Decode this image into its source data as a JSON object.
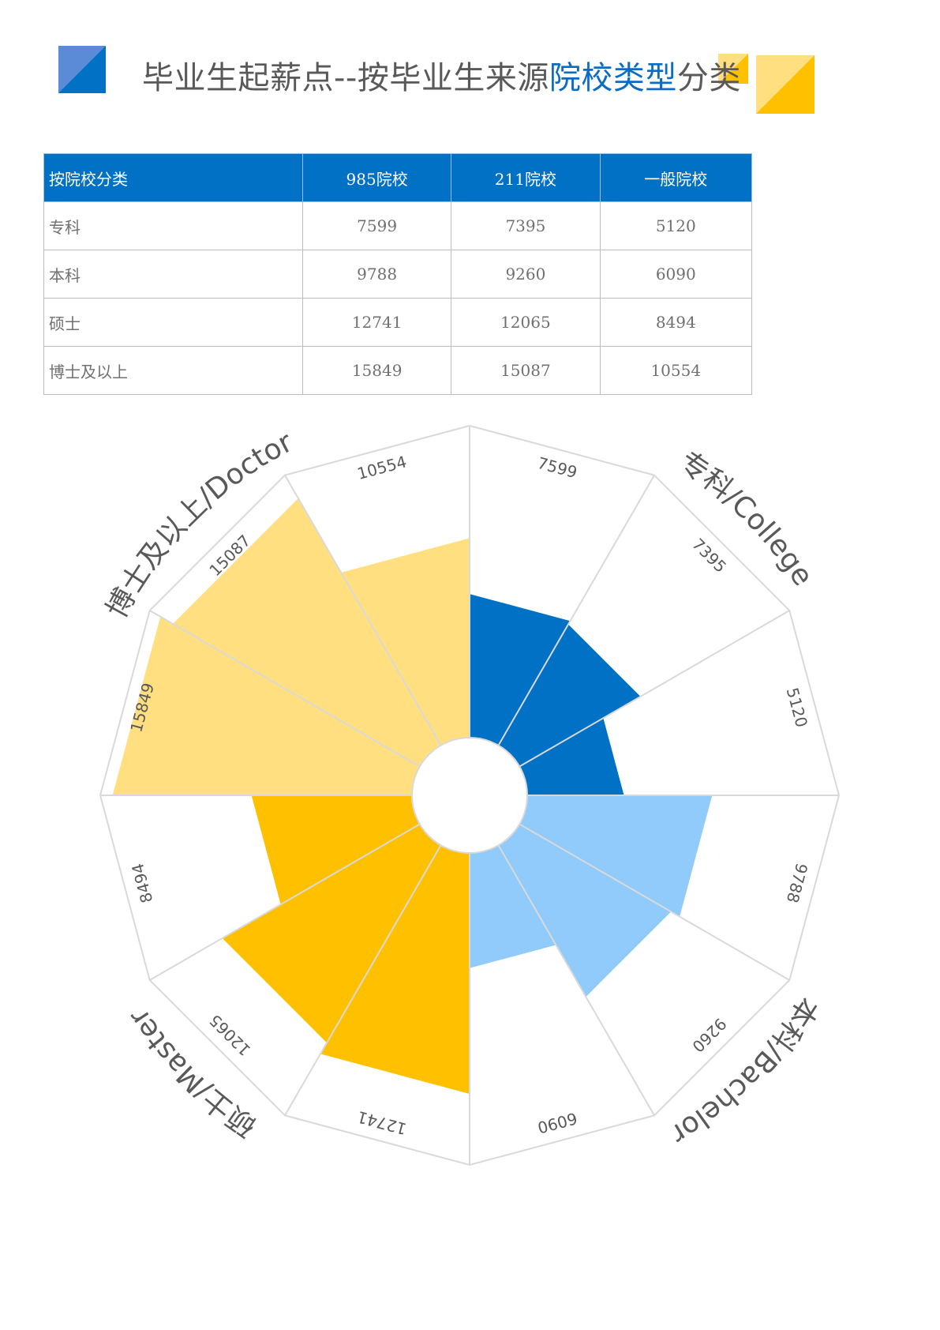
{
  "title": {
    "prefix": "毕业生起薪点--按毕业生来源",
    "highlight": "院校类型",
    "suffix": "分类"
  },
  "colors": {
    "accent_blue": "#0071c5",
    "light_blue": "#90cbfb",
    "yellow": "#ffc000",
    "light_yellow": "#ffdf80",
    "grid": "#d9d9d9",
    "text": "#595959"
  },
  "table": {
    "headers": [
      "按院校分类",
      "985院校",
      "211院校",
      "一般院校"
    ],
    "rows": [
      [
        "专科",
        "7599",
        "7395",
        "5120"
      ],
      [
        "本科",
        "9788",
        "9260",
        "6090"
      ],
      [
        "硕士",
        "12741",
        "12065",
        "8494"
      ],
      [
        "博士及以上",
        "15849",
        "15087",
        "10554"
      ]
    ]
  },
  "chart_data": {
    "type": "polar-bar",
    "series_labels": [
      "985院校",
      "211院校",
      "一般院校"
    ],
    "groups": [
      {
        "label": "专科/College",
        "values": [
          7599,
          7395,
          5120
        ],
        "color": "#0071c5"
      },
      {
        "label": "本科/Bachelor",
        "values": [
          9788,
          9260,
          6090
        ],
        "color": "#90cbfb"
      },
      {
        "label": "硕士/Master",
        "values": [
          12741,
          12065,
          8494
        ],
        "color": "#ffc000"
      },
      {
        "label": "博士及以上/Doctor",
        "values": [
          15849,
          15087,
          10554
        ],
        "color": "#ffdf80"
      }
    ],
    "rmax": 16500,
    "grid": true
  }
}
